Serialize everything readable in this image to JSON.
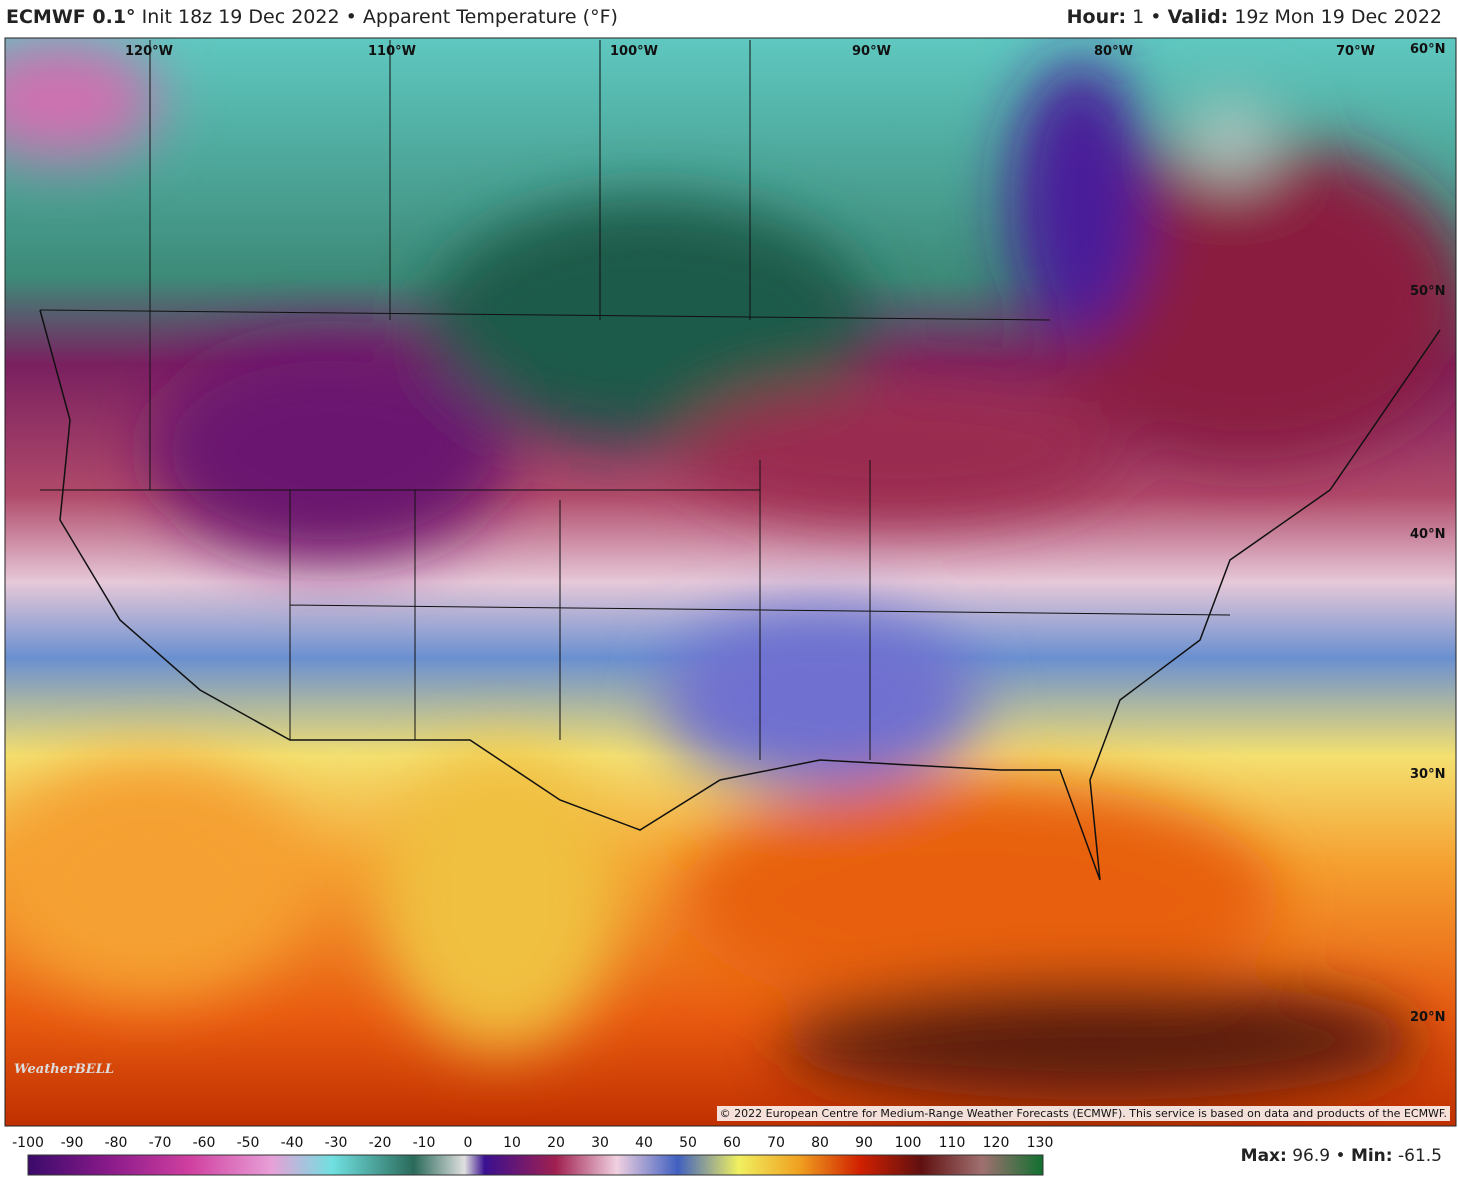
{
  "header": {
    "model": "ECMWF 0.1°",
    "init": "Init 18z 19 Dec 2022",
    "separator": "•",
    "field": "Apparent Temperature (°F)",
    "hour_label": "Hour:",
    "hour": "1",
    "valid_label": "Valid:",
    "valid": "19z Mon 19 Dec 2022"
  },
  "map": {
    "longitudes": [
      "120°W",
      "110°W",
      "100°W",
      "90°W",
      "80°W",
      "70°W"
    ],
    "latitudes": [
      "60°N",
      "50°N",
      "40°N",
      "30°N",
      "20°N"
    ],
    "logo": "WeatherBELL",
    "copyright": "© 2022 European Centre for Medium-Range Weather Forecasts (ECMWF). This service is based on data and products of the ECMWF."
  },
  "colorbar": {
    "labels": [
      -100,
      -90,
      -80,
      -70,
      -60,
      -50,
      -40,
      -30,
      -20,
      -10,
      0,
      10,
      20,
      30,
      40,
      50,
      60,
      70,
      80,
      90,
      100,
      110,
      120,
      130
    ]
  },
  "footer": {
    "max_label": "Max:",
    "max": "96.9",
    "separator": "•",
    "min_label": "Min:",
    "min": "-61.5"
  }
}
